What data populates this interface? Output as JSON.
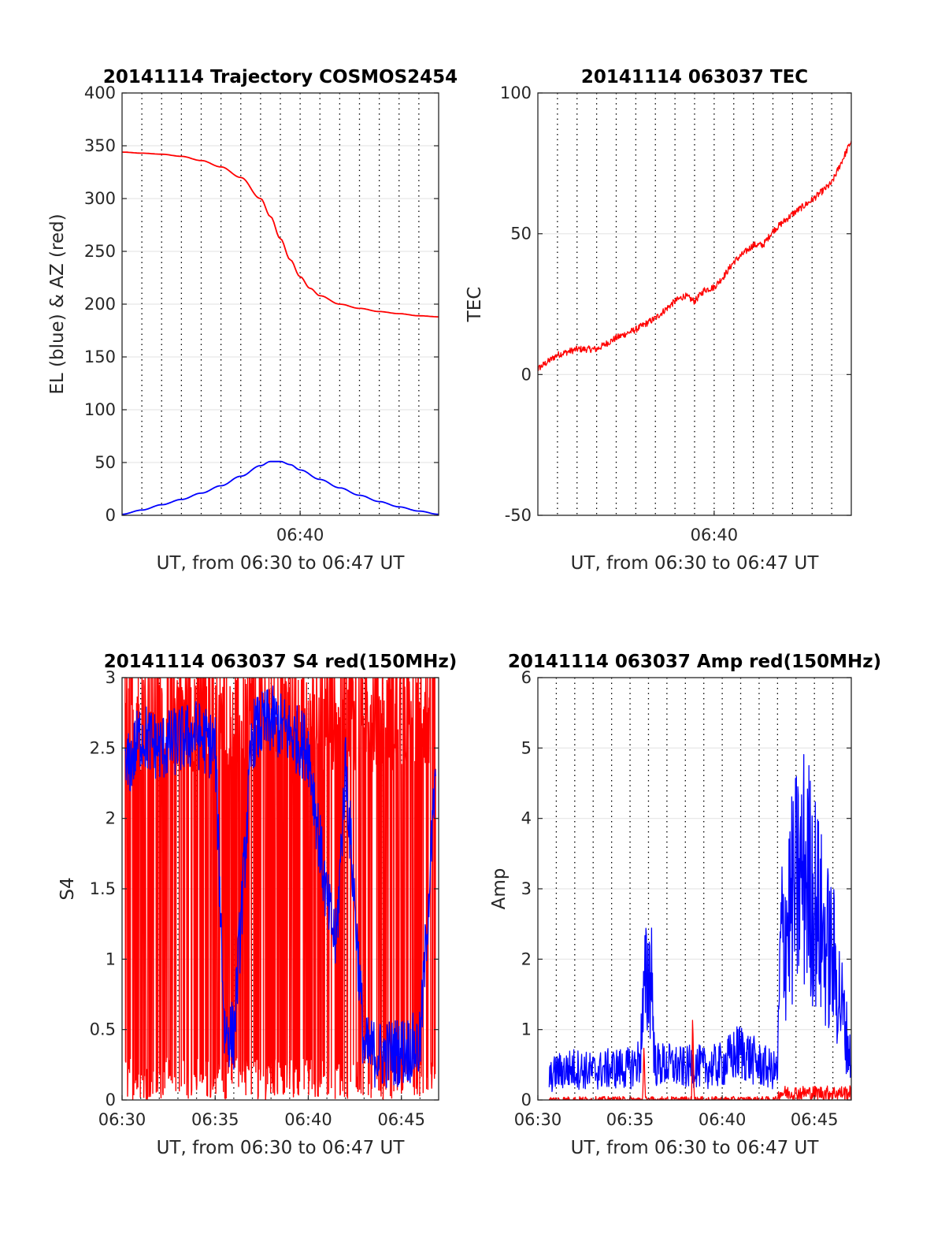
{
  "chart_data": [
    {
      "id": "p1",
      "type": "line",
      "title": "20141114 Trajectory COSMOS2454",
      "xlabel": "UT, from 06:30 to 06:47 UT",
      "ylabel": "EL (blue) & AZ (red)",
      "xlim": [
        "06:31:00",
        "06:47:00"
      ],
      "ylim": [
        0,
        400
      ],
      "yticks": [
        0,
        50,
        100,
        150,
        200,
        250,
        300,
        350,
        400
      ],
      "xtick_labels": [
        {
          "t": "06:40:00",
          "label": "06:40"
        }
      ],
      "grid": true,
      "series": [
        {
          "color": "#ff0000",
          "x": [
            "06:31:00",
            "06:32:00",
            "06:33:00",
            "06:34:00",
            "06:35:00",
            "06:36:00",
            "06:37:00",
            "06:38:00",
            "06:38:30",
            "06:39:00",
            "06:39:30",
            "06:40:00",
            "06:40:30",
            "06:41:00",
            "06:42:00",
            "06:43:00",
            "06:44:00",
            "06:45:00",
            "06:46:00",
            "06:47:00"
          ],
          "y": [
            344,
            343,
            342,
            340,
            336,
            330,
            320,
            300,
            283,
            262,
            242,
            226,
            215,
            208,
            200,
            196,
            193,
            191,
            189,
            188
          ]
        },
        {
          "color": "#0000ff",
          "x": [
            "06:31:00",
            "06:32:00",
            "06:33:00",
            "06:34:00",
            "06:35:00",
            "06:36:00",
            "06:37:00",
            "06:38:00",
            "06:38:30",
            "06:39:00",
            "06:39:30",
            "06:40:00",
            "06:41:00",
            "06:42:00",
            "06:43:00",
            "06:44:00",
            "06:45:00",
            "06:46:00",
            "06:47:00"
          ],
          "y": [
            1,
            5,
            10,
            15,
            21,
            28,
            37,
            47,
            51,
            51,
            48,
            43,
            34,
            26,
            19,
            13,
            8,
            4,
            1
          ]
        }
      ]
    },
    {
      "id": "p2",
      "type": "line",
      "title": "20141114 063037 TEC",
      "xlabel": "UT, from 06:30 to 06:47 UT",
      "ylabel": "TEC",
      "xlim": [
        "06:31:00",
        "06:47:00"
      ],
      "ylim": [
        -50,
        100
      ],
      "yticks": [
        -50,
        0,
        50,
        100
      ],
      "xtick_labels": [
        {
          "t": "06:40:00",
          "label": "06:40"
        }
      ],
      "grid": true,
      "series": [
        {
          "color": "#ff0000",
          "x": [
            "06:30:37",
            "06:31:00",
            "06:32:00",
            "06:33:00",
            "06:34:00",
            "06:35:00",
            "06:36:00",
            "06:37:00",
            "06:38:00",
            "06:38:30",
            "06:39:00",
            "06:39:30",
            "06:40:00",
            "06:40:30",
            "06:41:00",
            "06:42:00",
            "06:42:30",
            "06:43:00",
            "06:44:00",
            "06:45:00",
            "06:46:00",
            "06:47:00"
          ],
          "y": [
            0,
            2,
            7,
            9,
            9,
            13,
            16,
            20,
            26,
            28,
            26,
            30,
            31,
            35,
            40,
            46,
            46,
            51,
            57,
            62,
            68,
            83
          ]
        }
      ]
    },
    {
      "id": "p3",
      "type": "line",
      "title": "20141114 063037 S4 red(150MHz)",
      "xlabel": "UT, from 06:30 to 06:47 UT",
      "ylabel": "S4",
      "xlim": [
        "06:30:00",
        "06:47:00"
      ],
      "ylim": [
        0,
        3
      ],
      "yticks": [
        0,
        0.5,
        1,
        1.5,
        2,
        2.5,
        3
      ],
      "ytick_labels": [
        "0",
        "0.5",
        "1",
        "1.5",
        "2",
        "2.5",
        "3"
      ],
      "xtick_labels": [
        {
          "t": "06:30:00",
          "label": "06:30"
        },
        {
          "t": "06:35:00",
          "label": "06:35"
        },
        {
          "t": "06:40:00",
          "label": "06:40"
        },
        {
          "t": "06:45:00",
          "label": "06:45"
        }
      ],
      "grid": true,
      "series": [
        {
          "color": "#ff0000",
          "kind": "noise",
          "x_range": [
            "06:30:10",
            "06:46:50"
          ],
          "band": [
            0,
            3
          ],
          "level": 2.6,
          "spike_rate": 0.35
        },
        {
          "color": "#0000ff",
          "x": [
            "06:30:10",
            "06:31:00",
            "06:32:00",
            "06:33:00",
            "06:34:00",
            "06:35:00",
            "06:35:30",
            "06:36:00",
            "06:37:00",
            "06:38:00",
            "06:39:00",
            "06:40:00",
            "06:41:00",
            "06:41:30",
            "06:42:00",
            "06:43:00",
            "06:44:00",
            "06:45:00",
            "06:46:00",
            "06:46:50"
          ],
          "y": [
            2.3,
            2.6,
            2.5,
            2.55,
            2.6,
            2.5,
            0.5,
            0.45,
            2.6,
            2.7,
            2.6,
            2.5,
            1.4,
            1.1,
            2.4,
            0.35,
            0.32,
            0.35,
            0.38,
            2.3
          ]
        }
      ]
    },
    {
      "id": "p4",
      "type": "line",
      "title": "20141114 063037 Amp red(150MHz)",
      "xlabel": "UT, from 06:30 to 06:47 UT",
      "ylabel": "Amp",
      "xlim": [
        "06:30:00",
        "06:47:00"
      ],
      "ylim": [
        0,
        6
      ],
      "yticks": [
        0,
        1,
        2,
        3,
        4,
        5,
        6
      ],
      "xtick_labels": [
        {
          "t": "06:30:00",
          "label": "06:30"
        },
        {
          "t": "06:35:00",
          "label": "06:35"
        },
        {
          "t": "06:40:00",
          "label": "06:40"
        },
        {
          "t": "06:45:00",
          "label": "06:45"
        }
      ],
      "grid": true,
      "series": [
        {
          "color": "#0000ff",
          "x": [
            "06:30:37",
            "06:31:00",
            "06:32:00",
            "06:33:00",
            "06:34:00",
            "06:35:00",
            "06:35:30",
            "06:35:50",
            "06:36:10",
            "06:36:20",
            "06:37:00",
            "06:38:00",
            "06:38:30",
            "06:39:00",
            "06:40:00",
            "06:41:00",
            "06:42:00",
            "06:43:00",
            "06:43:10",
            "06:44:00",
            "06:44:30",
            "06:45:00",
            "06:45:30",
            "06:46:00",
            "06:46:30",
            "06:47:00"
          ],
          "y": [
            0.3,
            0.4,
            0.45,
            0.4,
            0.45,
            0.45,
            0.55,
            1.6,
            1.9,
            0.5,
            0.5,
            0.45,
            0.5,
            0.45,
            0.5,
            0.7,
            0.5,
            0.4,
            2.2,
            3.0,
            3.3,
            2.9,
            2.3,
            2.0,
            1.3,
            0.5
          ]
        },
        {
          "color": "#ff0000",
          "x": [
            "06:30:37",
            "06:35:40",
            "06:35:45",
            "06:35:50",
            "06:38:20",
            "06:38:25",
            "06:38:30",
            "06:43:00",
            "06:43:05",
            "06:47:00"
          ],
          "y": [
            0,
            0,
            0.6,
            0,
            0,
            1.2,
            0,
            0,
            0.1,
            0.1
          ]
        }
      ]
    }
  ]
}
